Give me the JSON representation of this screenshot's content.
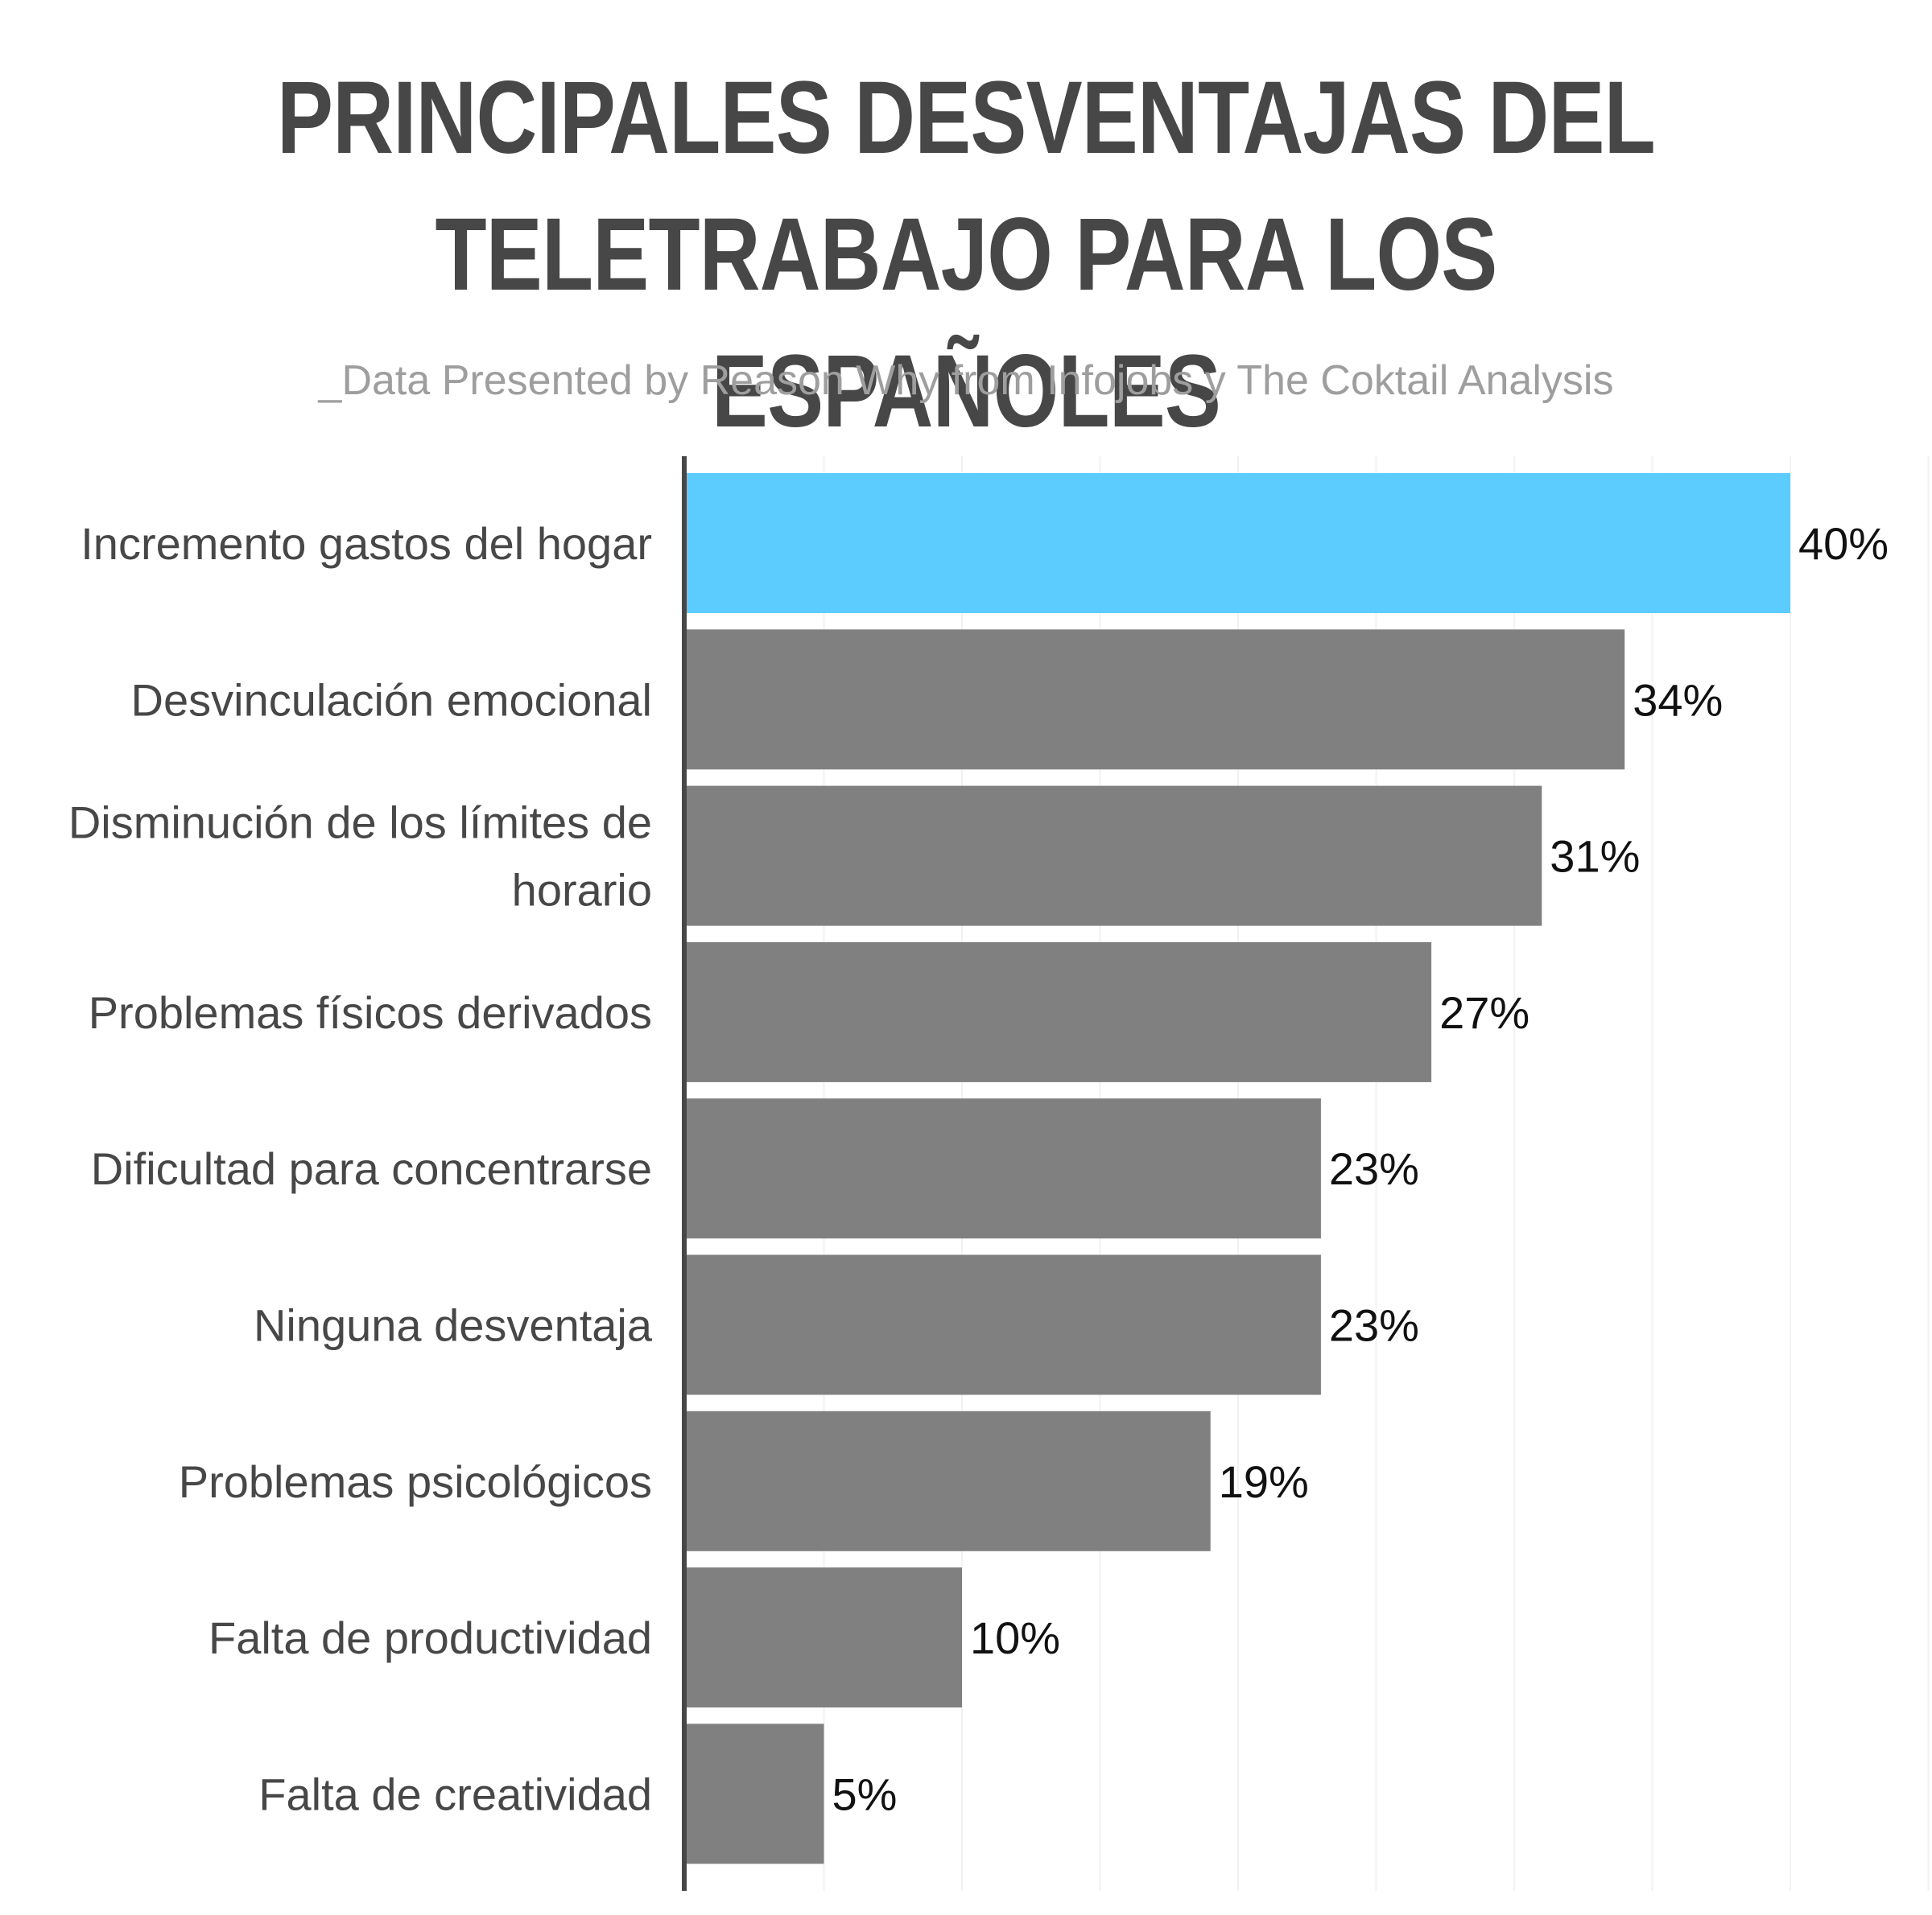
{
  "title_lines": [
    "PRINCIPALES DESVENTAJAS DEL",
    "TELETRABAJO PARA LOS ESPAÑOLES"
  ],
  "subtitle": "_Data Presented by Reason Why from Infojobs y The Coktail Analysis",
  "colors": {
    "highlight": "#5ccbfd",
    "bar": "#808080",
    "axis": "#474747",
    "grid": "#f2f2f2",
    "title": "#474747",
    "subtitle": "#9e9e9e"
  },
  "chart_data": {
    "type": "bar",
    "orientation": "horizontal",
    "title": "PRINCIPALES DESVENTAJAS DEL TELETRABAJO PARA LOS ESPAÑOLES",
    "subtitle": "_Data Presented by Reason Why from Infojobs y The Coktail Analysis",
    "categories": [
      "Incremento gastos del hogar",
      "Desvinculación emocional",
      "Disminución de los límites de horario",
      "Problemas físicos derivados",
      "Dificultad para concentrarse",
      "Ninguna desventaja",
      "Problemas psicológicos",
      "Falta de productividad",
      "Falta de creatividad"
    ],
    "category_label_lines": [
      [
        "Incremento gastos del hogar"
      ],
      [
        "Desvinculación emocional"
      ],
      [
        "Disminución de los límites de",
        "horario"
      ],
      [
        "Problemas físicos derivados"
      ],
      [
        "Dificultad para concentrarse"
      ],
      [
        "Ninguna desventaja"
      ],
      [
        "Problemas psicológicos"
      ],
      [
        "Falta de productividad"
      ],
      [
        "Falta de creatividad"
      ]
    ],
    "values": [
      40,
      34,
      31,
      27,
      23,
      23,
      19,
      10,
      5
    ],
    "value_labels": [
      "40%",
      "34%",
      "31%",
      "27%",
      "23%",
      "23%",
      "19%",
      "10%",
      "5%"
    ],
    "highlight_index": 0,
    "xlim": [
      0,
      45
    ],
    "xlabel": "",
    "ylabel": "",
    "grid": true
  }
}
